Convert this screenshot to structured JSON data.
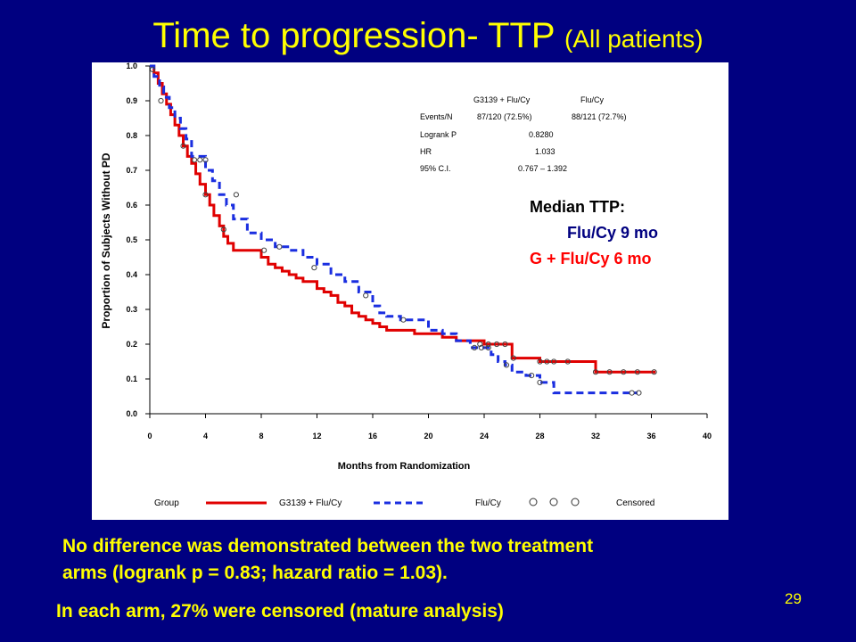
{
  "slide": {
    "title_main": "Time to progression- TTP",
    "title_sub": "(All patients)",
    "note_line1": "No difference was demonstrated between the two treatment",
    "note_line2": "arms (logrank p = 0.83; hazard ratio = 1.03).",
    "note_line3": "In each arm, 27% were censored (mature analysis)",
    "slide_number": "29",
    "median_title": "Median TTP:",
    "median_flu": "Flu/Cy   9 mo",
    "median_g": "G + Flu/Cy  6 mo",
    "colors": {
      "background": "#000080",
      "title": "#ffff00",
      "red_arm": "#e00000",
      "blue_arm": "#1a2ee0"
    }
  },
  "stats_table": {
    "header_g": "G3139 + Flu/Cy",
    "header_flu": "Flu/Cy",
    "rows": [
      {
        "label": "Events/N",
        "g": "87/120  (72.5%)",
        "flu": "88/121  (72.7%)"
      },
      {
        "label": "Logrank  P",
        "mid": "0.8280"
      },
      {
        "label": "HR",
        "mid": "1.033"
      },
      {
        "label": "95%  C.I.",
        "mid": "0.767  –  1.392"
      }
    ]
  },
  "legend": {
    "group_label": "Group",
    "series_g": "G3139 + Flu/Cy",
    "series_flu": "Flu/Cy",
    "censored_label": "Censored"
  },
  "chart_data": {
    "type": "line",
    "xlabel": "Months from Randomization",
    "ylabel": "Proportion of Subjects Without PD",
    "xlim": [
      0,
      40
    ],
    "ylim": [
      0,
      1.0
    ],
    "x_ticks": [
      0,
      4,
      8,
      12,
      16,
      20,
      24,
      28,
      32,
      36,
      40
    ],
    "y_ticks": [
      0.0,
      0.1,
      0.2,
      0.3,
      0.4,
      0.5,
      0.6,
      0.7,
      0.8,
      0.9,
      1.0
    ],
    "step": true,
    "series": [
      {
        "name": "G3139 + Flu/Cy",
        "color": "#e00000",
        "style": "solid",
        "x": [
          0,
          0.3,
          0.6,
          0.9,
          1.2,
          1.5,
          1.8,
          2.1,
          2.4,
          2.7,
          3.0,
          3.3,
          3.6,
          4.0,
          4.3,
          4.6,
          5.0,
          5.3,
          5.6,
          6.0,
          6.5,
          8.0,
          8.5,
          9.0,
          9.5,
          10.0,
          10.5,
          11.0,
          12.0,
          12.5,
          13.0,
          13.5,
          14.0,
          14.5,
          15.0,
          15.5,
          16.0,
          16.5,
          17.0,
          18.0,
          18.5,
          19.0,
          20.0,
          21.0,
          22.0,
          24.0,
          26.0,
          28.0,
          32.0,
          36.3
        ],
        "y": [
          1.0,
          0.98,
          0.95,
          0.92,
          0.89,
          0.86,
          0.83,
          0.8,
          0.77,
          0.74,
          0.72,
          0.69,
          0.66,
          0.63,
          0.6,
          0.57,
          0.54,
          0.51,
          0.49,
          0.47,
          0.47,
          0.45,
          0.43,
          0.42,
          0.41,
          0.4,
          0.39,
          0.38,
          0.36,
          0.35,
          0.34,
          0.32,
          0.31,
          0.29,
          0.28,
          0.27,
          0.26,
          0.25,
          0.24,
          0.24,
          0.24,
          0.23,
          0.23,
          0.22,
          0.21,
          0.2,
          0.16,
          0.15,
          0.12,
          0.12
        ],
        "censored": [
          [
            0.2,
            0.99
          ],
          [
            2.4,
            0.77
          ],
          [
            4.0,
            0.63
          ],
          [
            5.3,
            0.53
          ],
          [
            8.2,
            0.47
          ],
          [
            23.7,
            0.2
          ],
          [
            24.3,
            0.2
          ],
          [
            24.9,
            0.2
          ],
          [
            25.5,
            0.2
          ],
          [
            26.1,
            0.16
          ],
          [
            28.0,
            0.15
          ],
          [
            28.5,
            0.15
          ],
          [
            29.0,
            0.15
          ],
          [
            30.0,
            0.15
          ],
          [
            32.0,
            0.12
          ],
          [
            33.0,
            0.12
          ],
          [
            34.0,
            0.12
          ],
          [
            35.0,
            0.12
          ],
          [
            36.2,
            0.12
          ]
        ]
      },
      {
        "name": "Flu/Cy",
        "color": "#1a2ee0",
        "style": "dashed",
        "x": [
          0,
          0.3,
          0.7,
          1.0,
          1.4,
          1.8,
          2.2,
          2.6,
          3.0,
          4.0,
          4.5,
          5.0,
          5.5,
          6.0,
          7.0,
          8.0,
          9.0,
          10.0,
          11.0,
          12.0,
          13.0,
          14.0,
          15.0,
          16.0,
          16.5,
          17.0,
          18.0,
          19.0,
          20.0,
          21.0,
          22.0,
          23.0,
          24.0,
          24.5,
          25.0,
          25.5,
          26.0,
          27.0,
          28.0,
          29.0,
          35.0
        ],
        "y": [
          1.0,
          0.97,
          0.94,
          0.91,
          0.88,
          0.85,
          0.82,
          0.79,
          0.74,
          0.7,
          0.67,
          0.63,
          0.6,
          0.56,
          0.52,
          0.5,
          0.48,
          0.47,
          0.45,
          0.43,
          0.4,
          0.38,
          0.35,
          0.31,
          0.29,
          0.28,
          0.27,
          0.27,
          0.24,
          0.23,
          0.21,
          0.19,
          0.19,
          0.17,
          0.15,
          0.14,
          0.12,
          0.11,
          0.09,
          0.06,
          0.06
        ],
        "censored": [
          [
            0.8,
            0.9
          ],
          [
            3.2,
            0.73
          ],
          [
            3.6,
            0.73
          ],
          [
            4.0,
            0.73
          ],
          [
            6.2,
            0.63
          ],
          [
            9.3,
            0.48
          ],
          [
            11.8,
            0.42
          ],
          [
            15.5,
            0.34
          ],
          [
            18.2,
            0.27
          ],
          [
            23.3,
            0.19
          ],
          [
            23.8,
            0.19
          ],
          [
            24.3,
            0.19
          ],
          [
            25.6,
            0.14
          ],
          [
            27.4,
            0.11
          ],
          [
            28.0,
            0.09
          ],
          [
            34.6,
            0.06
          ],
          [
            35.1,
            0.06
          ]
        ]
      }
    ]
  }
}
